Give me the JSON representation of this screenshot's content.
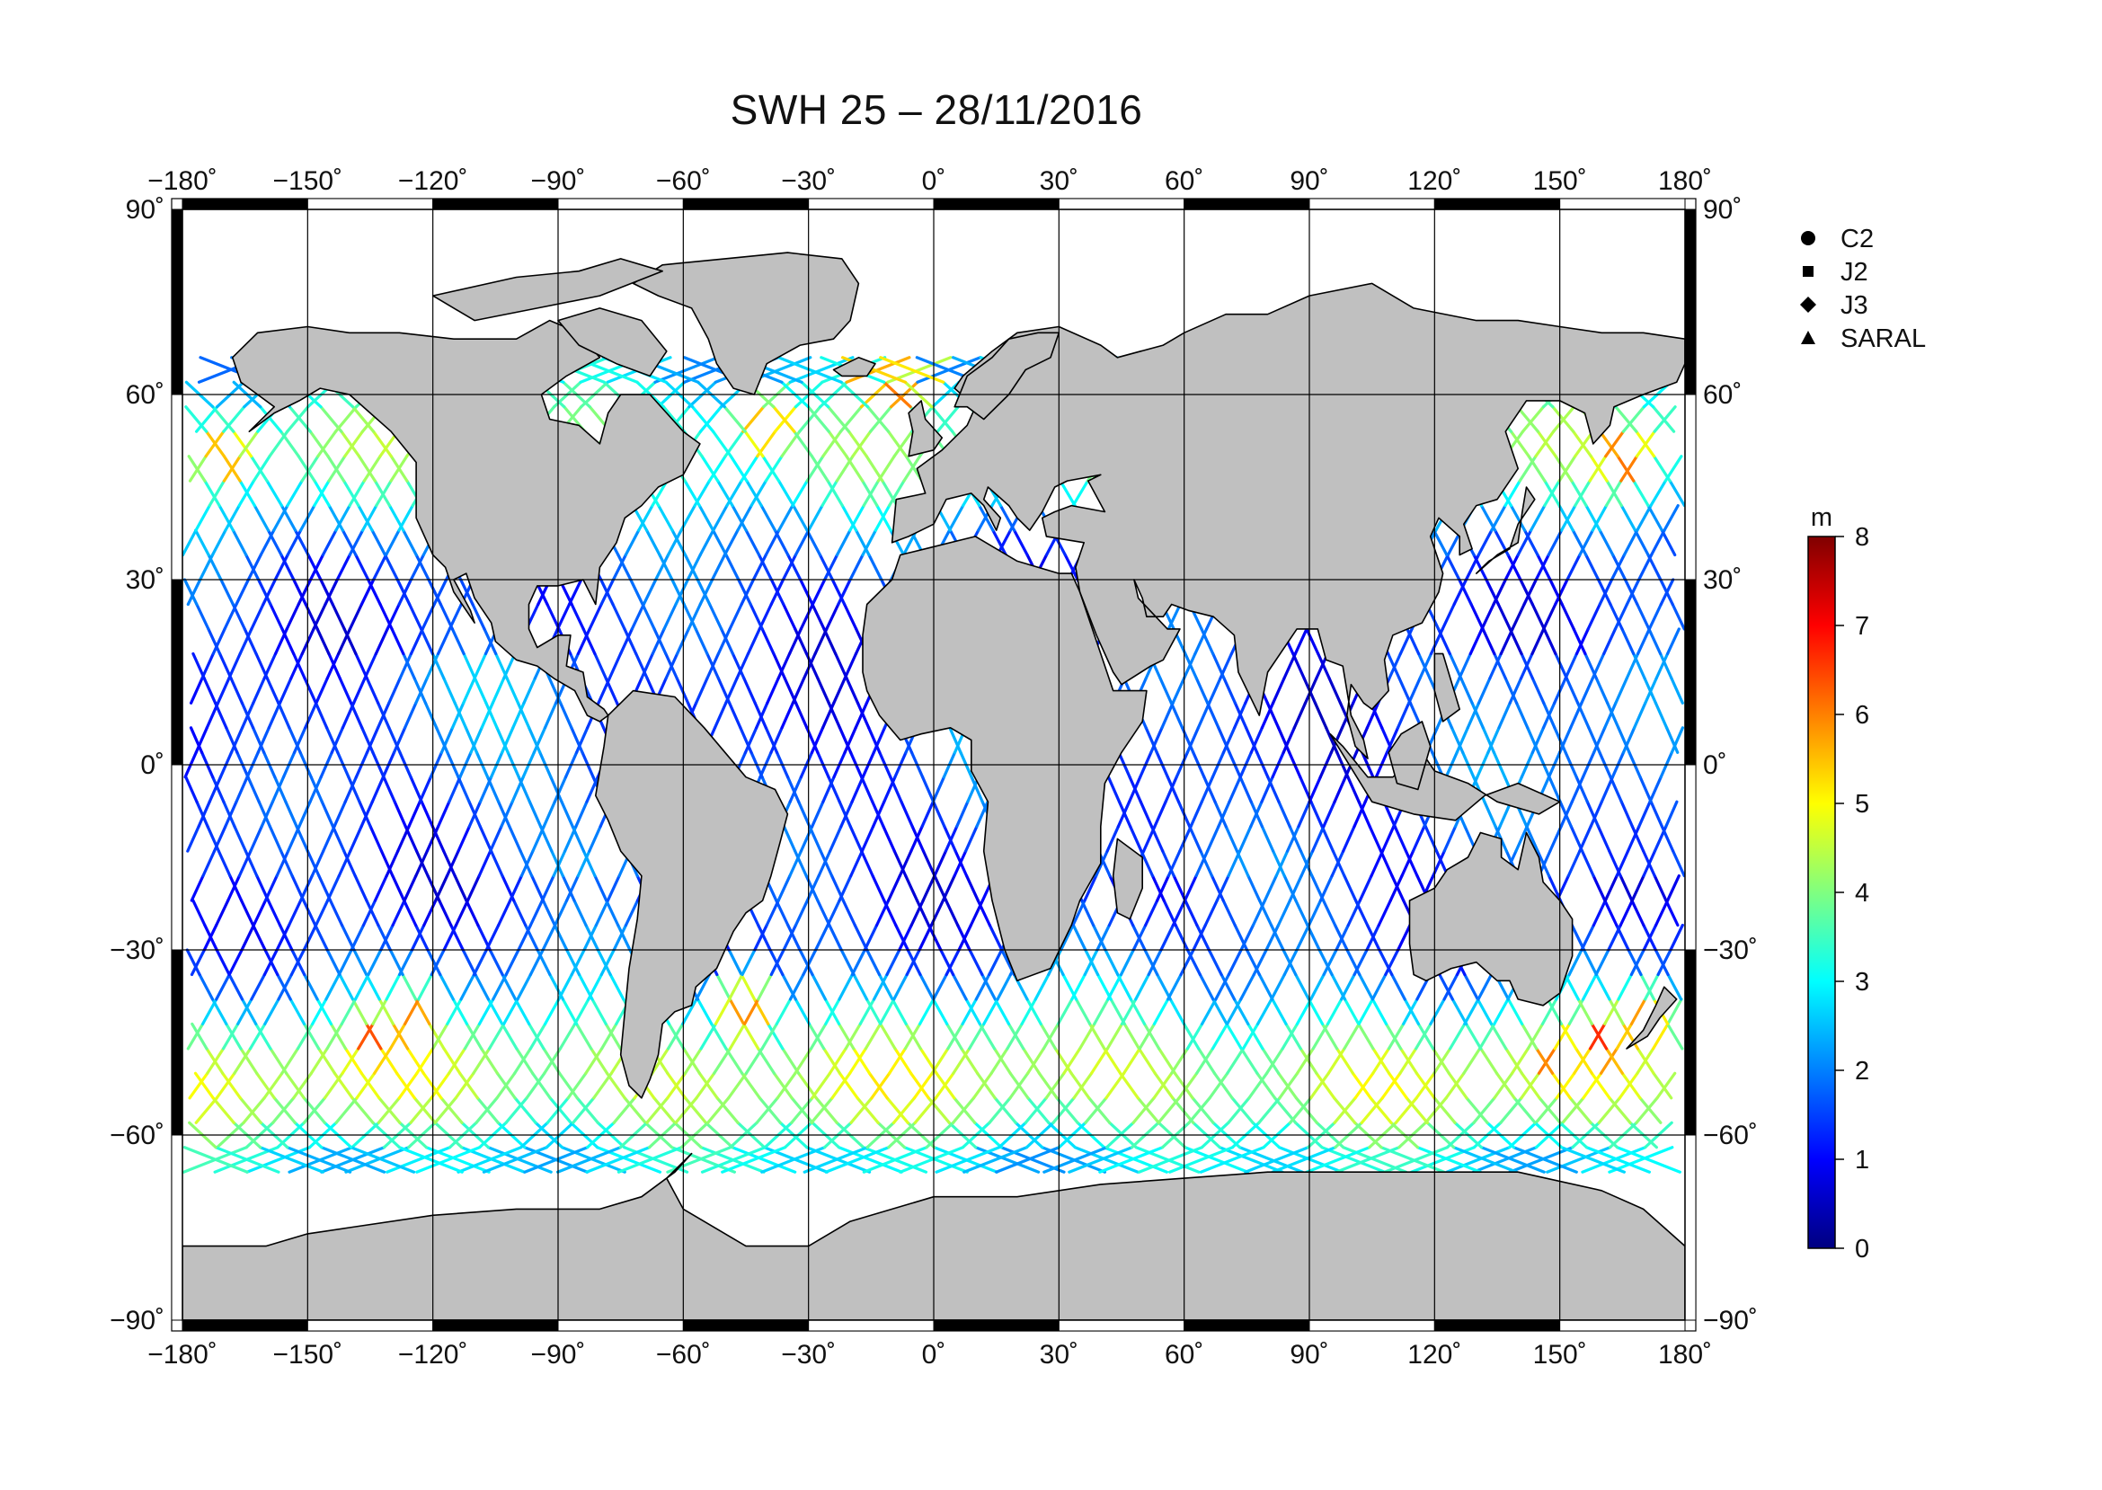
{
  "map": {
    "title": "SWH 25 – 28/11/2016",
    "projection": "equirectangular",
    "extent": {
      "lon": [
        -180,
        180
      ],
      "lat": [
        -90,
        90
      ]
    },
    "graticule_step_deg": 30,
    "land_color": "#c0c0c0",
    "ocean_color": "#ffffff",
    "coast_color": "#000000"
  },
  "axes": {
    "lon_ticks": [
      -180,
      -150,
      -120,
      -90,
      -60,
      -30,
      0,
      30,
      60,
      90,
      120,
      150,
      180
    ],
    "lat_ticks": [
      90,
      60,
      30,
      0,
      -30,
      -60,
      -90
    ],
    "lon_labels": [
      "−180˚",
      "−150˚",
      "−120˚",
      "−90˚",
      "−60˚",
      "−30˚",
      "0˚",
      "30˚",
      "60˚",
      "90˚",
      "120˚",
      "150˚",
      "180˚"
    ],
    "lat_labels": [
      "90˚",
      "60˚",
      "30˚",
      "0˚",
      "−30˚",
      "−60˚",
      "−90˚"
    ]
  },
  "legend": {
    "items": [
      {
        "label": "C2",
        "marker": "circle-icon"
      },
      {
        "label": "J2",
        "marker": "square-icon"
      },
      {
        "label": "J3",
        "marker": "diamond-icon"
      },
      {
        "label": "SARAL",
        "marker": "triangle-icon"
      }
    ]
  },
  "colorbar": {
    "unit": "m",
    "min": 0,
    "max": 8,
    "tick_values": [
      0,
      1,
      2,
      3,
      4,
      5,
      6,
      7,
      8
    ],
    "tick_labels": [
      "0",
      "1",
      "2",
      "3",
      "4",
      "5",
      "6",
      "7",
      "8"
    ],
    "colormap": [
      "#000080",
      "#0000ff",
      "#0080ff",
      "#00ffff",
      "#80ff80",
      "#ffff00",
      "#ff8000",
      "#ff0000",
      "#800000"
    ]
  },
  "swh_field": {
    "description_values_m": {
      "southern_ocean_band": [
        3,
        5
      ],
      "tropics": [
        1,
        2.5
      ],
      "north_atlantic": [
        3,
        6
      ],
      "north_pacific": [
        3,
        6
      ]
    },
    "hotspots": [
      {
        "lon": -135,
        "lat": -45,
        "swh_m": 6.5
      },
      {
        "lon": -125,
        "lat": -42,
        "swh_m": 6.3
      },
      {
        "lon": -40,
        "lat": 55,
        "swh_m": 6
      },
      {
        "lon": -10,
        "lat": 62,
        "swh_m": 6.5
      },
      {
        "lon": -170,
        "lat": 50,
        "swh_m": 6
      },
      {
        "lon": 165,
        "lat": 50,
        "swh_m": 6.5
      },
      {
        "lon": 150,
        "lat": -48,
        "swh_m": 6.5
      },
      {
        "lon": 160,
        "lat": -45,
        "swh_m": 6.8
      },
      {
        "lon": -45,
        "lat": -40,
        "swh_m": 6
      },
      {
        "lon": 170,
        "lat": -42,
        "swh_m": 6.2
      }
    ],
    "track_latitude_limits": [
      -66,
      66
    ]
  }
}
